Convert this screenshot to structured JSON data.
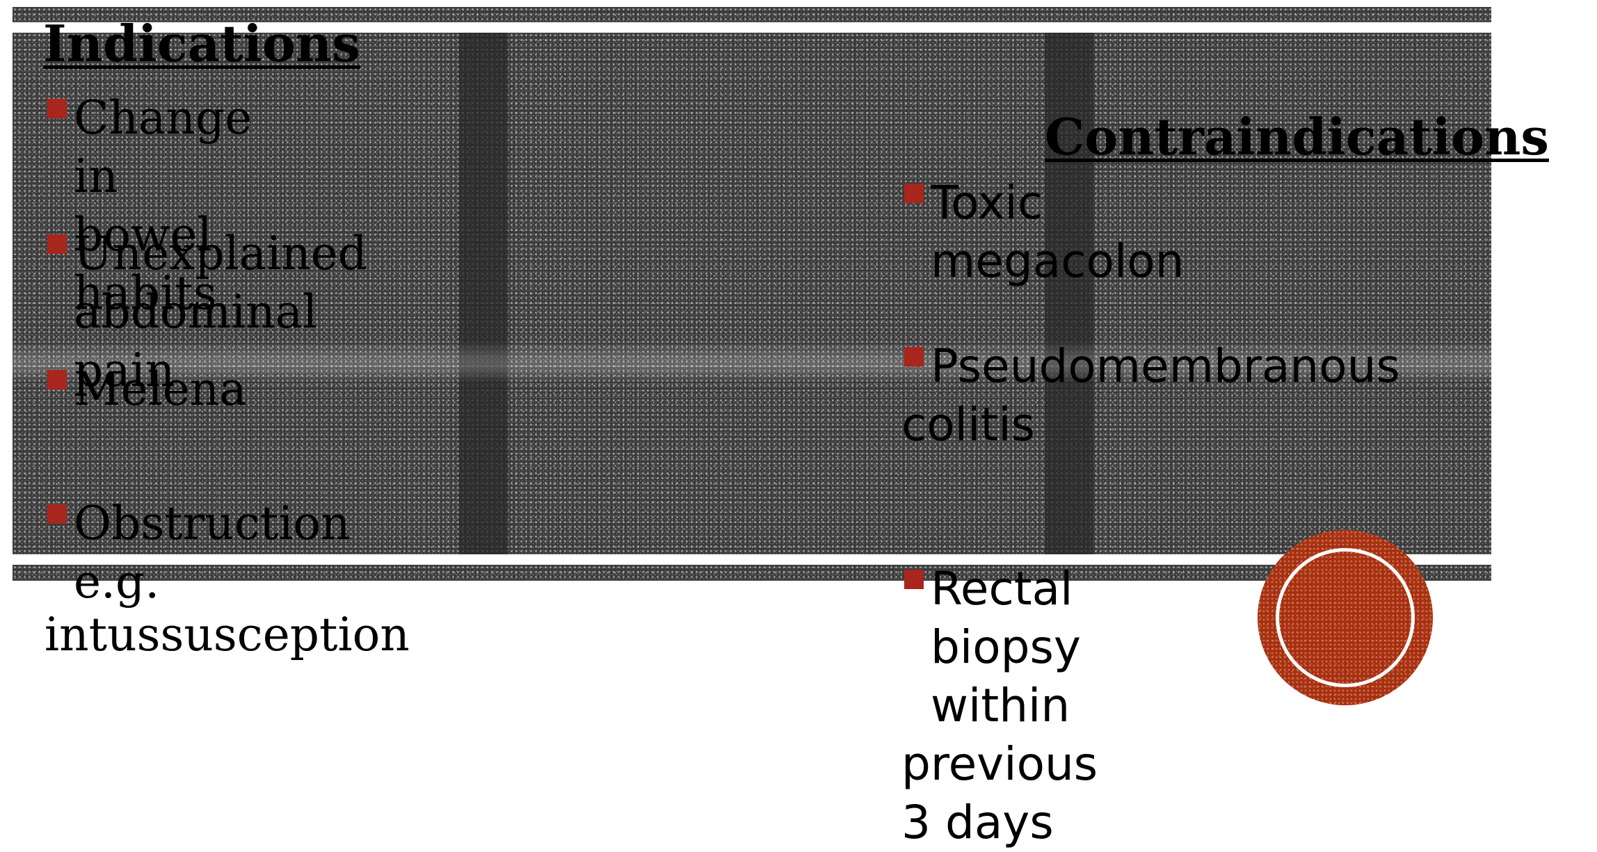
{
  "slide": {
    "colors": {
      "band": "#3a3a3a",
      "bullet": "#a8261d",
      "circle": "#a8300f",
      "text": "#000000"
    },
    "indications": {
      "title": "Indications",
      "items": [
        {
          "line1": "Change in bowel habits",
          "line2": ""
        },
        {
          "line1": "Unexplained abdominal pain",
          "line2": ""
        },
        {
          "line1": "Melena",
          "line2": ""
        },
        {
          "line1": "Obstruction e.g.",
          "line2": "intussusception"
        }
      ]
    },
    "contraindications": {
      "title": "Contraindications",
      "items": [
        {
          "line1": "Toxic megacolon",
          "line2": ""
        },
        {
          "line1": "Pseudomembranous",
          "line2": "colitis"
        },
        {
          "line1": "Rectal biopsy within",
          "line2": "previous 3 days"
        }
      ]
    }
  }
}
